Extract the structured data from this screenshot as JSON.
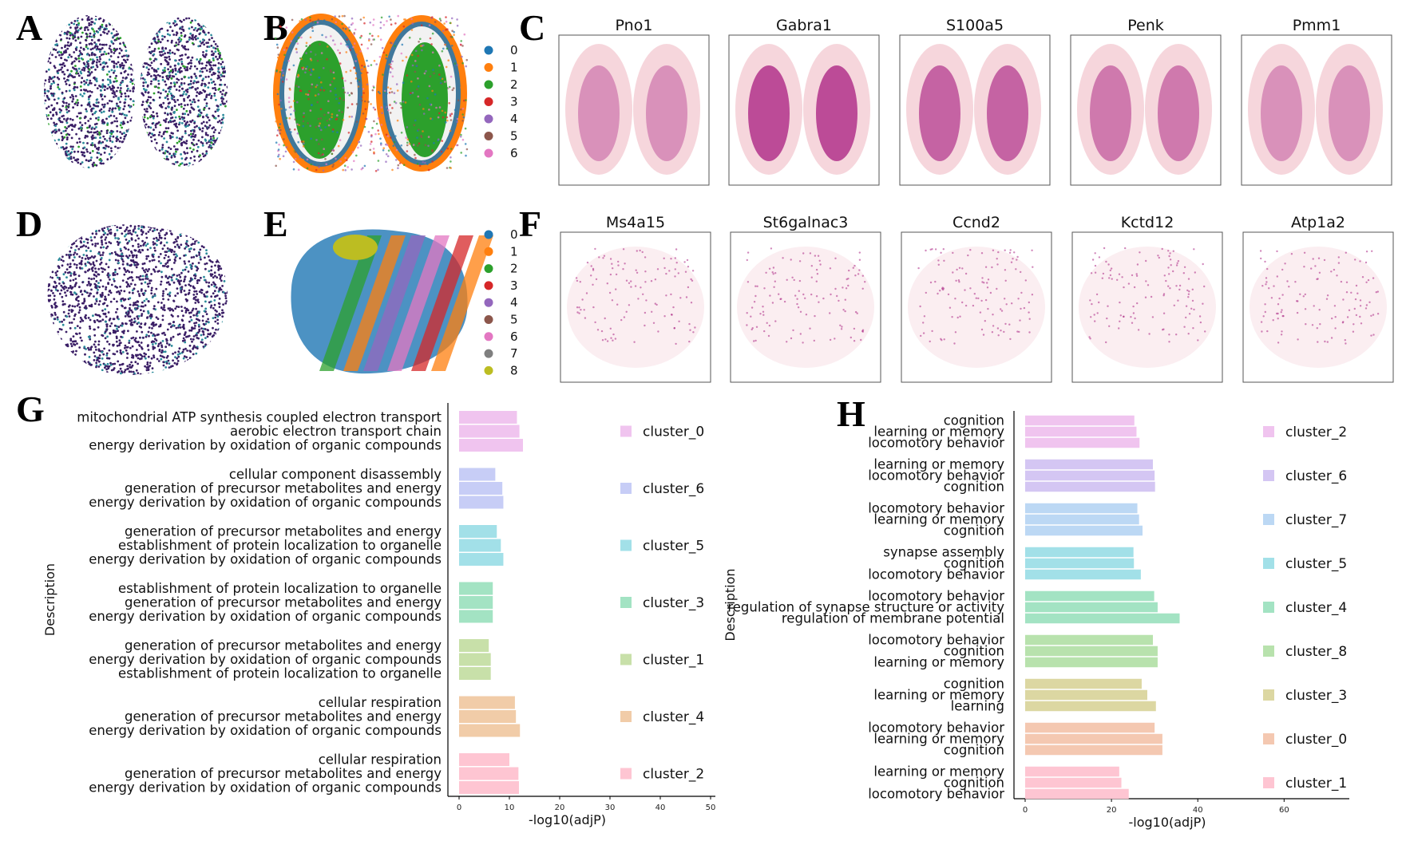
{
  "panels": {
    "letters": [
      "A",
      "B",
      "C",
      "D",
      "E",
      "F",
      "G",
      "H"
    ]
  },
  "colors": {
    "spatial_deep": "#3b1f66",
    "spatial_teal": "#2b8a9a",
    "spatial_green": "#2ca02c",
    "gene_expression": "#a3127a",
    "gene_background": "#f6d6dc",
    "cluster_palette": [
      "#1f77b4",
      "#ff7f0e",
      "#2ca02c",
      "#d62728",
      "#9467bd",
      "#8c564b",
      "#e377c2",
      "#7f7f7f",
      "#bcbd22"
    ]
  },
  "panel_B_legend": [
    "0",
    "1",
    "2",
    "3",
    "4",
    "5",
    "6"
  ],
  "panel_E_legend": [
    "0",
    "1",
    "2",
    "3",
    "4",
    "5",
    "6",
    "7",
    "8"
  ],
  "panel_C_genes": [
    "Pno1",
    "Gabra1",
    "S100a5",
    "Penk",
    "Pmm1"
  ],
  "panel_F_genes": [
    "Ms4a15",
    "St6galnac3",
    "Ccnd2",
    "Kctd12",
    "Atp1a2"
  ],
  "chart_data": [
    {
      "panel": "G",
      "type": "bar",
      "orientation": "horizontal",
      "ylabel": "Description",
      "xlabel": "-log10(adjP)",
      "xlim": [
        0,
        50
      ],
      "xticks": [
        "0",
        "10",
        "20",
        "30",
        "40",
        "50"
      ],
      "grid": false,
      "legend_position": "right",
      "groups": [
        {
          "name": "cluster_0",
          "color": "#f0c4ef",
          "terms": [
            "mitochondrial ATP synthesis coupled electron transport",
            "aerobic electron transport chain",
            "energy derivation by oxidation of organic compounds"
          ],
          "values": [
            11.5,
            12.0,
            12.7
          ]
        },
        {
          "name": "cluster_6",
          "color": "#c7cdf6",
          "terms": [
            "cellular component disassembly",
            "generation of precursor metabolites and energy",
            "energy derivation by oxidation of organic compounds"
          ],
          "values": [
            7.2,
            8.6,
            8.8
          ]
        },
        {
          "name": "cluster_5",
          "color": "#a2e0e8",
          "terms": [
            "generation of precursor metabolites and energy",
            "establishment of protein localization to organelle",
            "energy derivation by oxidation of organic compounds"
          ],
          "values": [
            7.5,
            8.3,
            8.8
          ]
        },
        {
          "name": "cluster_3",
          "color": "#a3e3c3",
          "terms": [
            "establishment of protein localization to organelle",
            "generation of precursor metabolites and energy",
            "energy derivation by oxidation of organic compounds"
          ],
          "values": [
            6.7,
            6.7,
            6.7
          ]
        },
        {
          "name": "cluster_1",
          "color": "#c8e0a9",
          "terms": [
            "generation of precursor metabolites and energy",
            "energy derivation by oxidation of organic compounds",
            "establishment of protein localization to organelle"
          ],
          "values": [
            5.9,
            6.3,
            6.3
          ]
        },
        {
          "name": "cluster_4",
          "color": "#f1cca8",
          "terms": [
            "cellular respiration",
            "generation of precursor metabolites and energy",
            "energy derivation by oxidation of organic compounds"
          ],
          "values": [
            11.1,
            11.3,
            12.1
          ]
        },
        {
          "name": "cluster_2",
          "color": "#fec5d2",
          "terms": [
            "cellular respiration",
            "generation of precursor metabolites and energy",
            "energy derivation by oxidation of organic compounds"
          ],
          "values": [
            10.0,
            11.8,
            11.9
          ]
        }
      ]
    },
    {
      "panel": "H",
      "type": "bar",
      "orientation": "horizontal",
      "ylabel": "Description",
      "xlabel": "-log10(adjP)",
      "xlim": [
        0,
        74
      ],
      "xticks": [
        "0",
        "20",
        "40",
        "60"
      ],
      "grid": false,
      "legend_position": "right",
      "groups": [
        {
          "name": "cluster_2",
          "color": "#f0c4ef",
          "terms": [
            "cognition",
            "learning or memory",
            "locomotory behavior"
          ],
          "values": [
            25.3,
            25.8,
            26.5
          ]
        },
        {
          "name": "cluster_6",
          "color": "#d4c6f3",
          "terms": [
            "learning or memory",
            "locomotory behavior",
            "cognition"
          ],
          "values": [
            29.6,
            30.0,
            30.1
          ]
        },
        {
          "name": "cluster_7",
          "color": "#bcd8f4",
          "terms": [
            "locomotory behavior",
            "learning or memory",
            "cognition"
          ],
          "values": [
            26.0,
            26.4,
            27.2
          ]
        },
        {
          "name": "cluster_5",
          "color": "#a2e0e8",
          "terms": [
            "synapse assembly",
            "cognition",
            "locomotory behavior"
          ],
          "values": [
            25.1,
            25.2,
            26.8
          ]
        },
        {
          "name": "cluster_4",
          "color": "#a3e3c3",
          "terms": [
            "locomotory behavior",
            "regulation of synapse structure or activity",
            "regulation of membrane potential"
          ],
          "values": [
            29.9,
            30.7,
            35.8
          ]
        },
        {
          "name": "cluster_8",
          "color": "#b8e2ad",
          "terms": [
            "locomotory behavior",
            "cognition",
            "learning or memory"
          ],
          "values": [
            29.6,
            30.7,
            30.7
          ]
        },
        {
          "name": "cluster_3",
          "color": "#dcd7a2",
          "terms": [
            "cognition",
            "learning or memory",
            "learning"
          ],
          "values": [
            27.0,
            28.3,
            30.3
          ]
        },
        {
          "name": "cluster_0",
          "color": "#f4c8b1",
          "terms": [
            "locomotory behavior",
            "learning or memory",
            "cognition"
          ],
          "values": [
            30.0,
            31.8,
            31.8
          ]
        },
        {
          "name": "cluster_1",
          "color": "#fec5d2",
          "terms": [
            "learning or memory",
            "cognition",
            "locomotory behavior"
          ],
          "values": [
            21.8,
            22.3,
            24.0
          ]
        }
      ]
    }
  ]
}
